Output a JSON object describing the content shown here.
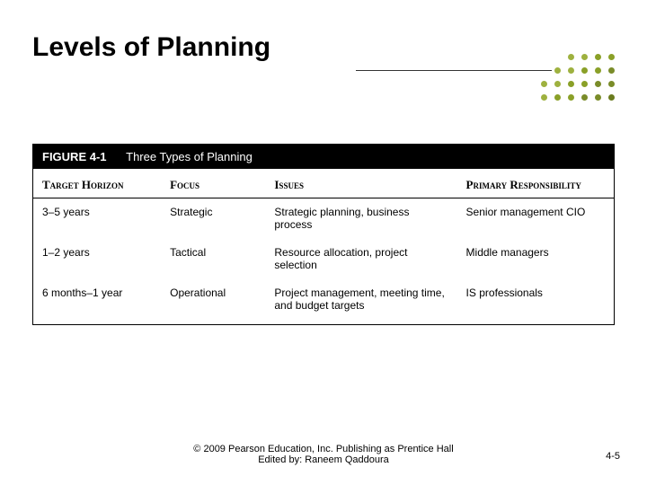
{
  "title": "Levels of Planning",
  "accent": {
    "dot_colors": [
      "#b9c97b",
      "#9eb13f",
      "#8aa028",
      "#7a8c29",
      "#6a7b1e"
    ],
    "rows": 4,
    "cols": 6,
    "dot_size": 7,
    "gap": 8
  },
  "figure": {
    "label": "FIGURE 4-1",
    "title": "Three Types of Planning",
    "columns": [
      "Target Horizon",
      "Focus",
      "Issues",
      "Primary Responsibility"
    ],
    "col_widths": [
      "22%",
      "18%",
      "33%",
      "27%"
    ],
    "rows": [
      {
        "horizon": "3–5 years",
        "focus": "Strategic",
        "issues": "Strategic planning, business process",
        "resp": "Senior management CIO"
      },
      {
        "horizon": "1–2 years",
        "focus": "Tactical",
        "issues": "Resource allocation, project selection",
        "resp": "Middle managers"
      },
      {
        "horizon": "6 months–1 year",
        "focus": "Operational",
        "issues": "Project management, meeting time, and budget targets",
        "resp": "IS professionals"
      }
    ]
  },
  "footer": {
    "copyright": "© 2009 Pearson Education, Inc. Publishing as Prentice Hall",
    "edited": "Edited by: Raneem Qaddoura"
  },
  "page_number": "4-5"
}
